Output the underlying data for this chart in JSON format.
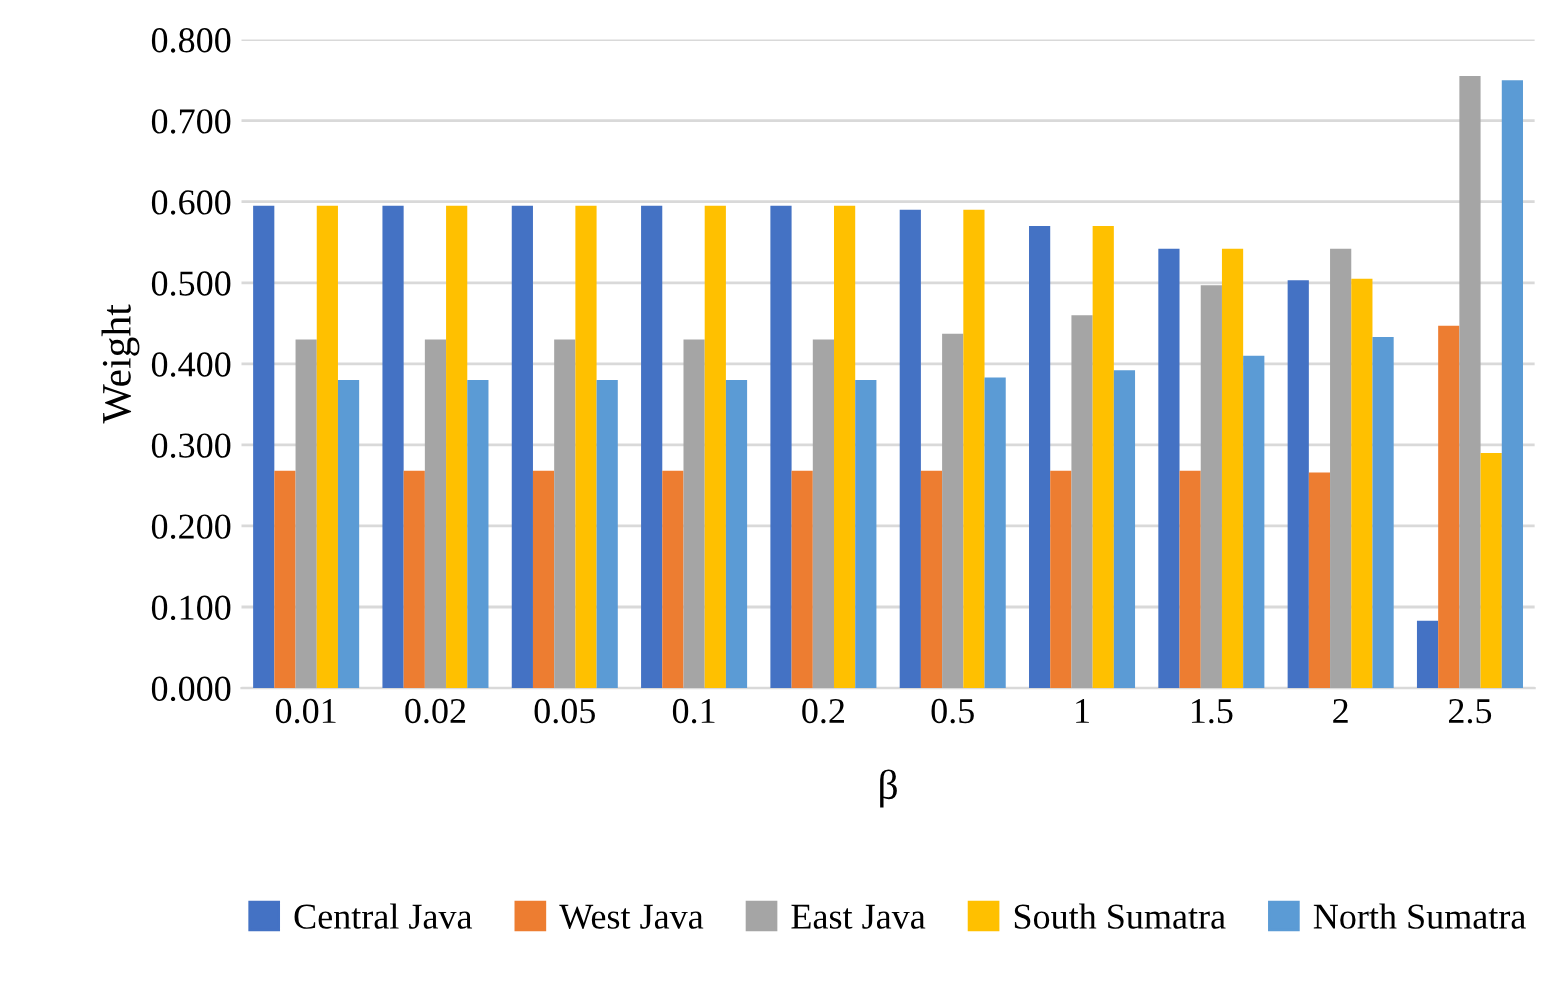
{
  "chart_data": {
    "type": "bar",
    "xlabel": "β",
    "ylabel": "Weight",
    "categories": [
      "0.01",
      "0.02",
      "0.05",
      "0.1",
      "0.2",
      "0.5",
      "1",
      "1.5",
      "2",
      "2.5"
    ],
    "series": [
      {
        "name": "Central Java",
        "color": "#4472c4",
        "values": [
          0.595,
          0.595,
          0.595,
          0.595,
          0.595,
          0.59,
          0.57,
          0.542,
          0.503,
          0.083
        ]
      },
      {
        "name": "West Java",
        "color": "#ed7d31",
        "values": [
          0.268,
          0.268,
          0.268,
          0.268,
          0.268,
          0.268,
          0.268,
          0.268,
          0.266,
          0.447
        ]
      },
      {
        "name": "East Java",
        "color": "#a5a5a5",
        "values": [
          0.43,
          0.43,
          0.43,
          0.43,
          0.43,
          0.437,
          0.46,
          0.497,
          0.542,
          0.755
        ]
      },
      {
        "name": "South Sumatra",
        "color": "#ffc000",
        "values": [
          0.595,
          0.595,
          0.595,
          0.595,
          0.595,
          0.59,
          0.57,
          0.542,
          0.505,
          0.29
        ]
      },
      {
        "name": "North Sumatra",
        "color": "#5b9bd5",
        "values": [
          0.38,
          0.38,
          0.38,
          0.38,
          0.38,
          0.383,
          0.392,
          0.41,
          0.433,
          0.75
        ]
      }
    ],
    "ylim": [
      0,
      0.8
    ],
    "yticks": [
      {
        "value": 0,
        "label": "0.000"
      },
      {
        "value": 0.1,
        "label": "0.100"
      },
      {
        "value": 0.2,
        "label": "0.200"
      },
      {
        "value": 0.3,
        "label": "0.300"
      },
      {
        "value": 0.4,
        "label": "0.400"
      },
      {
        "value": 0.5,
        "label": "0.500"
      },
      {
        "value": 0.6,
        "label": "0.600"
      },
      {
        "value": 0.7,
        "label": "0.700"
      },
      {
        "value": 0.8,
        "label": "0.800"
      }
    ],
    "grid": "y",
    "legend": "bottom"
  }
}
